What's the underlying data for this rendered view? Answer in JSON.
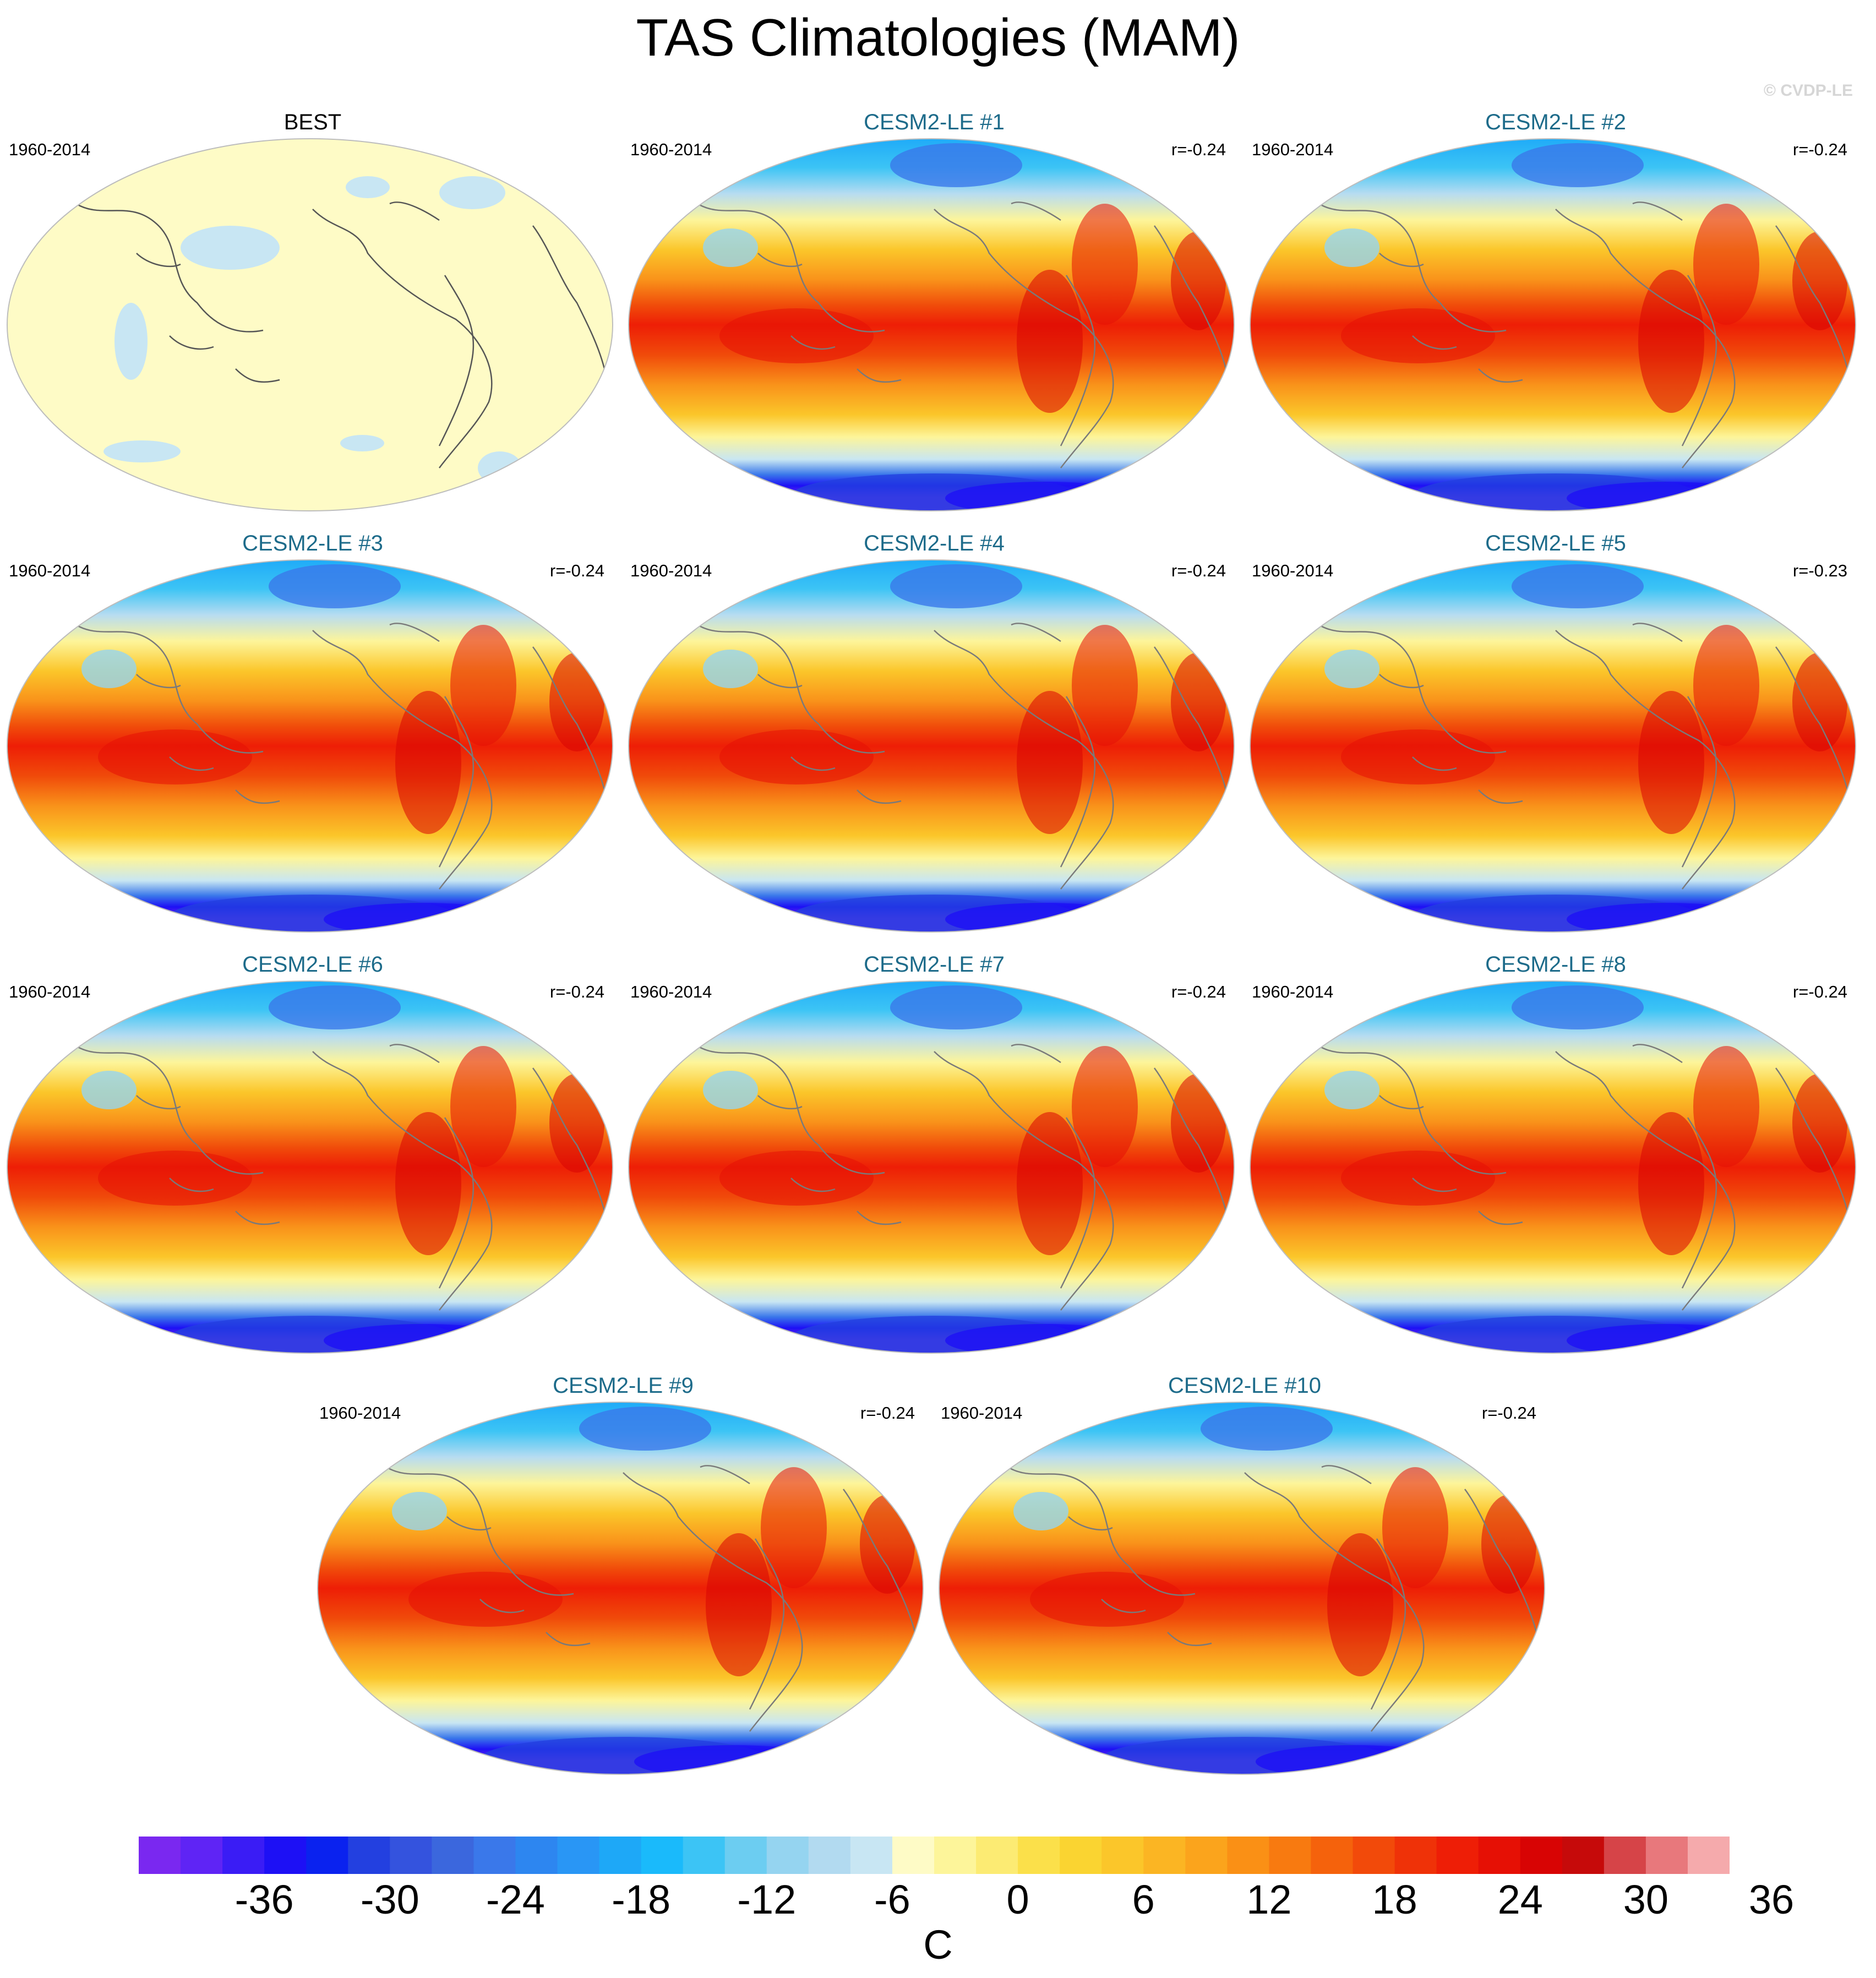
{
  "title": "TAS Climatologies (MAM)",
  "copyright": "© CVDP-LE",
  "panels": [
    {
      "title": "BEST",
      "period": "1960-2014",
      "r": "",
      "kind": "obs"
    },
    {
      "title": "CESM2-LE #1",
      "period": "1960-2014",
      "r": "r=-0.24",
      "kind": "model"
    },
    {
      "title": "CESM2-LE #2",
      "period": "1960-2014",
      "r": "r=-0.24",
      "kind": "model"
    },
    {
      "title": "CESM2-LE #3",
      "period": "1960-2014",
      "r": "r=-0.24",
      "kind": "model"
    },
    {
      "title": "CESM2-LE #4",
      "period": "1960-2014",
      "r": "r=-0.24",
      "kind": "model"
    },
    {
      "title": "CESM2-LE #5",
      "period": "1960-2014",
      "r": "r=-0.23",
      "kind": "model"
    },
    {
      "title": "CESM2-LE #6",
      "period": "1960-2014",
      "r": "r=-0.24",
      "kind": "model"
    },
    {
      "title": "CESM2-LE #7",
      "period": "1960-2014",
      "r": "r=-0.24",
      "kind": "model"
    },
    {
      "title": "CESM2-LE #8",
      "period": "1960-2014",
      "r": "r=-0.24",
      "kind": "model"
    },
    {
      "title": "CESM2-LE #9",
      "period": "1960-2014",
      "r": "r=-0.24",
      "kind": "model"
    },
    {
      "title": "CESM2-LE #10",
      "period": "1960-2014",
      "r": "r=-0.24",
      "kind": "model"
    }
  ],
  "colorbar": {
    "unit": "C",
    "tick_labels": [
      "-36",
      "-30",
      "-24",
      "-18",
      "-12",
      "-6",
      "0",
      "6",
      "12",
      "18",
      "24",
      "30",
      "36"
    ],
    "colors": [
      "#7a28f0",
      "#5f24f5",
      "#3a1cf5",
      "#1d10f5",
      "#0a22ef",
      "#2340e0",
      "#3453de",
      "#3b67dd",
      "#3a78ea",
      "#2d86f0",
      "#2996f5",
      "#1ea8f7",
      "#1abafb",
      "#3cc4f5",
      "#6ccdf1",
      "#95d4f0",
      "#b2daf0",
      "#c8e6f3",
      "#fefbc6",
      "#fdf59a",
      "#fceb73",
      "#fbe04a",
      "#fad431",
      "#fbc62a",
      "#fbb523",
      "#fba41c",
      "#fa9015",
      "#f87a10",
      "#f5620c",
      "#f24a0a",
      "#ef3208",
      "#ee1e06",
      "#e61005",
      "#d80404",
      "#c60a0a",
      "#d64448",
      "#e8787c",
      "#f5aaac"
    ]
  }
}
